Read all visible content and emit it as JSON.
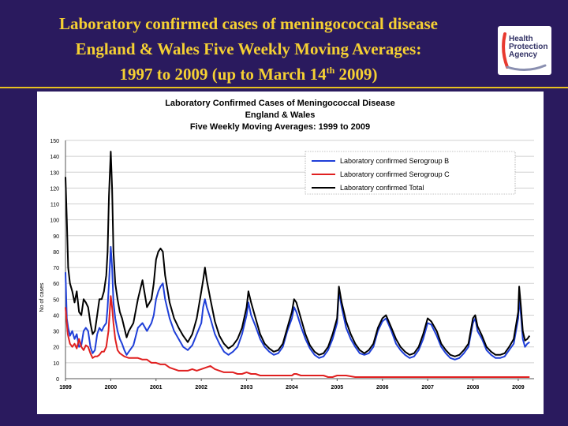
{
  "slide": {
    "title_line1": "Laboratory confirmed cases of meningococcal disease",
    "title_line2": "England & Wales Five Weekly Moving Averages:",
    "title_line3_pre": "1997 to 2009 (up to March 14",
    "title_line3_sup": "th",
    "title_line3_post": " 2009)",
    "logo_lines": [
      "Health",
      "Protection",
      "Agency"
    ],
    "colors": {
      "background": "#2a1a5e",
      "title": "#f5d033",
      "logo_accent": "#e8392f"
    }
  },
  "chart_data": {
    "type": "line",
    "title_lines": [
      "Laboratory Confirmed Cases of Meningococcal Disease",
      "England & Wales",
      "Five Weekly Moving Averages: 1999 to 2009"
    ],
    "xlabel": "",
    "ylabel": "No of cases",
    "ylim": [
      0,
      150
    ],
    "yticks": [
      0,
      10,
      20,
      30,
      40,
      50,
      60,
      70,
      80,
      90,
      100,
      110,
      120,
      130,
      140,
      150
    ],
    "xlim": [
      1999.0,
      2009.35
    ],
    "xticks": [
      "1999",
      "2000",
      "2001",
      "2002",
      "2003",
      "2004",
      "2005",
      "2006",
      "2007",
      "2008",
      "2009"
    ],
    "grid": true,
    "legend_placement": "top-right",
    "series": [
      {
        "name": "Laboratory confirmed Serogroup B",
        "color": "#1f3fd8",
        "x": [
          1999.0,
          1999.03,
          1999.06,
          1999.1,
          1999.15,
          1999.2,
          1999.25,
          1999.3,
          1999.35,
          1999.4,
          1999.45,
          1999.5,
          1999.55,
          1999.6,
          1999.65,
          1999.7,
          1999.75,
          1999.8,
          1999.85,
          1999.9,
          1999.93,
          1999.96,
          2000.0,
          2000.03,
          2000.06,
          2000.1,
          2000.15,
          2000.2,
          2000.25,
          2000.3,
          2000.35,
          2000.4,
          2000.5,
          2000.6,
          2000.7,
          2000.8,
          2000.9,
          2000.95,
          2001.0,
          2001.05,
          2001.1,
          2001.15,
          2001.2,
          2001.3,
          2001.4,
          2001.5,
          2001.6,
          2001.7,
          2001.8,
          2001.9,
          2002.0,
          2002.04,
          2002.08,
          2002.12,
          2002.2,
          2002.3,
          2002.4,
          2002.5,
          2002.6,
          2002.7,
          2002.8,
          2002.9,
          2003.0,
          2003.04,
          2003.1,
          2003.2,
          2003.3,
          2003.4,
          2003.5,
          2003.6,
          2003.7,
          2003.8,
          2003.9,
          2004.0,
          2004.05,
          2004.1,
          2004.2,
          2004.3,
          2004.4,
          2004.5,
          2004.6,
          2004.7,
          2004.8,
          2004.9,
          2005.0,
          2005.04,
          2005.1,
          2005.2,
          2005.3,
          2005.4,
          2005.5,
          2005.6,
          2005.7,
          2005.8,
          2005.9,
          2006.0,
          2006.08,
          2006.2,
          2006.3,
          2006.4,
          2006.5,
          2006.6,
          2006.7,
          2006.8,
          2006.9,
          2007.0,
          2007.08,
          2007.2,
          2007.3,
          2007.4,
          2007.5,
          2007.6,
          2007.7,
          2007.8,
          2007.9,
          2008.0,
          2008.05,
          2008.1,
          2008.2,
          2008.3,
          2008.4,
          2008.5,
          2008.6,
          2008.7,
          2008.8,
          2008.9,
          2009.0,
          2009.02,
          2009.06,
          2009.1,
          2009.15,
          2009.2,
          2009.25
        ],
        "values": [
          67,
          38,
          32,
          27,
          30,
          25,
          28,
          20,
          21,
          30,
          32,
          30,
          20,
          16,
          18,
          28,
          32,
          30,
          33,
          35,
          45,
          60,
          83,
          70,
          48,
          38,
          30,
          25,
          22,
          18,
          15,
          17,
          21,
          32,
          35,
          30,
          35,
          40,
          50,
          55,
          58,
          60,
          50,
          38,
          30,
          25,
          20,
          18,
          21,
          28,
          35,
          45,
          50,
          45,
          38,
          28,
          22,
          17,
          15,
          17,
          20,
          28,
          40,
          48,
          40,
          33,
          25,
          20,
          17,
          15,
          16,
          20,
          30,
          38,
          45,
          42,
          33,
          25,
          19,
          15,
          13,
          14,
          18,
          25,
          35,
          55,
          45,
          32,
          25,
          20,
          16,
          15,
          16,
          20,
          30,
          36,
          38,
          30,
          22,
          18,
          15,
          13,
          14,
          18,
          25,
          35,
          34,
          27,
          20,
          16,
          13,
          12,
          13,
          16,
          20,
          35,
          38,
          30,
          25,
          18,
          15,
          13,
          13,
          14,
          18,
          22,
          38,
          50,
          40,
          25,
          20,
          22,
          23
        ]
      },
      {
        "name": "Laboratory confirmed Serogroup C",
        "color": "#e02020",
        "x": [
          1999.0,
          1999.05,
          1999.1,
          1999.15,
          1999.2,
          1999.25,
          1999.3,
          1999.35,
          1999.4,
          1999.45,
          1999.5,
          1999.55,
          1999.6,
          1999.65,
          1999.7,
          1999.75,
          1999.8,
          1999.85,
          1999.9,
          1999.95,
          2000.0,
          2000.03,
          2000.06,
          2000.1,
          2000.15,
          2000.2,
          2000.3,
          2000.4,
          2000.5,
          2000.6,
          2000.7,
          2000.8,
          2000.9,
          2001.0,
          2001.1,
          2001.2,
          2001.3,
          2001.4,
          2001.5,
          2001.6,
          2001.7,
          2001.8,
          2001.9,
          2002.0,
          2002.1,
          2002.2,
          2002.3,
          2002.4,
          2002.5,
          2002.6,
          2002.7,
          2002.8,
          2002.9,
          2003.0,
          2003.1,
          2003.2,
          2003.3,
          2003.4,
          2003.5,
          2003.6,
          2003.7,
          2003.8,
          2003.9,
          2004.0,
          2004.05,
          2004.1,
          2004.2,
          2004.3,
          2004.4,
          2004.5,
          2004.6,
          2004.7,
          2004.8,
          2004.9,
          2005.0,
          2005.2,
          2005.4,
          2005.6,
          2005.8,
          2006.0,
          2006.2,
          2006.4,
          2006.6,
          2006.8,
          2007.0,
          2007.2,
          2007.4,
          2007.6,
          2007.8,
          2008.0,
          2008.2,
          2008.4,
          2008.6,
          2008.8,
          2009.0,
          2009.1,
          2009.2,
          2009.25
        ],
        "values": [
          45,
          28,
          22,
          20,
          22,
          19,
          25,
          20,
          18,
          21,
          20,
          16,
          13,
          14,
          14,
          15,
          17,
          17,
          20,
          30,
          52,
          45,
          35,
          25,
          18,
          16,
          14,
          13,
          13,
          13,
          12,
          12,
          10,
          10,
          9,
          9,
          7,
          6,
          5,
          5,
          5,
          6,
          5,
          6,
          7,
          8,
          6,
          5,
          4,
          4,
          4,
          3,
          3,
          4,
          3,
          3,
          2,
          2,
          2,
          2,
          2,
          2,
          2,
          2,
          3,
          3,
          2,
          2,
          2,
          2,
          2,
          2,
          1,
          1,
          2,
          2,
          1,
          1,
          1,
          1,
          1,
          1,
          1,
          1,
          1,
          1,
          1,
          1,
          1,
          1,
          1,
          1,
          1,
          1,
          1,
          1,
          1,
          1
        ]
      },
      {
        "name": "Laboratory confirmed Total",
        "color": "#000000",
        "x": [
          1999.0,
          1999.03,
          1999.06,
          1999.1,
          1999.15,
          1999.2,
          1999.25,
          1999.3,
          1999.35,
          1999.4,
          1999.45,
          1999.5,
          1999.55,
          1999.6,
          1999.65,
          1999.7,
          1999.75,
          1999.8,
          1999.85,
          1999.9,
          1999.93,
          1999.96,
          2000.0,
          2000.03,
          2000.06,
          2000.1,
          2000.15,
          2000.2,
          2000.25,
          2000.3,
          2000.35,
          2000.4,
          2000.5,
          2000.6,
          2000.7,
          2000.8,
          2000.9,
          2000.95,
          2001.0,
          2001.05,
          2001.1,
          2001.15,
          2001.2,
          2001.3,
          2001.4,
          2001.5,
          2001.6,
          2001.7,
          2001.8,
          2001.9,
          2002.0,
          2002.04,
          2002.08,
          2002.12,
          2002.2,
          2002.3,
          2002.4,
          2002.5,
          2002.6,
          2002.7,
          2002.8,
          2002.9,
          2003.0,
          2003.04,
          2003.1,
          2003.2,
          2003.3,
          2003.4,
          2003.5,
          2003.6,
          2003.7,
          2003.8,
          2003.9,
          2004.0,
          2004.05,
          2004.1,
          2004.2,
          2004.3,
          2004.4,
          2004.5,
          2004.6,
          2004.7,
          2004.8,
          2004.9,
          2005.0,
          2005.04,
          2005.1,
          2005.2,
          2005.3,
          2005.4,
          2005.5,
          2005.6,
          2005.7,
          2005.8,
          2005.9,
          2006.0,
          2006.08,
          2006.2,
          2006.3,
          2006.4,
          2006.5,
          2006.6,
          2006.7,
          2006.8,
          2006.9,
          2007.0,
          2007.08,
          2007.2,
          2007.3,
          2007.4,
          2007.5,
          2007.6,
          2007.7,
          2007.8,
          2007.9,
          2008.0,
          2008.05,
          2008.1,
          2008.2,
          2008.3,
          2008.4,
          2008.5,
          2008.6,
          2008.7,
          2008.8,
          2008.9,
          2009.0,
          2009.02,
          2009.06,
          2009.1,
          2009.15,
          2009.2,
          2009.25
        ],
        "values": [
          127,
          100,
          70,
          60,
          55,
          48,
          55,
          42,
          40,
          50,
          48,
          45,
          35,
          28,
          30,
          40,
          50,
          50,
          55,
          65,
          80,
          115,
          143,
          120,
          80,
          60,
          50,
          42,
          38,
          32,
          26,
          30,
          35,
          50,
          62,
          45,
          50,
          60,
          75,
          80,
          82,
          80,
          65,
          48,
          38,
          32,
          27,
          23,
          28,
          38,
          55,
          62,
          70,
          62,
          50,
          36,
          27,
          22,
          19,
          21,
          25,
          32,
          45,
          55,
          48,
          38,
          28,
          22,
          19,
          17,
          18,
          22,
          32,
          42,
          50,
          48,
          38,
          28,
          21,
          17,
          15,
          16,
          20,
          28,
          38,
          58,
          48,
          36,
          28,
          22,
          18,
          16,
          18,
          22,
          32,
          38,
          40,
          32,
          25,
          20,
          17,
          15,
          16,
          20,
          28,
          38,
          36,
          30,
          22,
          18,
          15,
          14,
          15,
          18,
          22,
          38,
          40,
          33,
          27,
          20,
          17,
          15,
          15,
          16,
          20,
          25,
          42,
          58,
          45,
          30,
          24,
          25,
          27
        ]
      }
    ]
  }
}
